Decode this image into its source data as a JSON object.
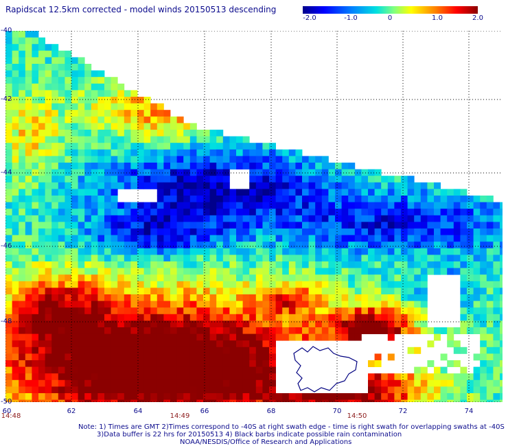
{
  "title": "Rapidscat 12.5km corrected - model winds 20150513 descending",
  "colorbar": {
    "ticks": [
      {
        "label": "-2.0",
        "value": -2.0
      },
      {
        "label": "-1.0",
        "value": -1.0
      },
      {
        "label": "0",
        "value": 0
      },
      {
        "label": "1.0",
        "value": 1.0
      },
      {
        "label": "2.0",
        "value": 2.0
      }
    ],
    "min": -2.0,
    "max": 2.0,
    "colors": [
      "#00008c",
      "#0000ff",
      "#0080ff",
      "#00e0e0",
      "#80ff80",
      "#ffff00",
      "#ff8000",
      "#ff0000",
      "#8b0000"
    ]
  },
  "map": {
    "lat_labels": [
      "-40",
      "-42",
      "-44",
      "-46",
      "-48",
      "-50"
    ],
    "lon_labels": [
      "60",
      "62",
      "64",
      "66",
      "68",
      "70",
      "72",
      "74"
    ],
    "time_labels": [
      "14:48",
      "14:49",
      "14:50"
    ],
    "lat_range": [
      -50,
      -40
    ],
    "lon_range": [
      60,
      74.6
    ],
    "grid": true,
    "coastline": "Kerguelen Islands"
  },
  "notes": {
    "line1": "Note: 1) Times are GMT 2)Times correspond to -40S at right swath edge - time is right swath for overlapping swaths at -40S",
    "line2": "3)Data buffer is 22 hrs for 20150513 4) Black barbs indicate possible rain contamination",
    "line3": "NOAA/NESDIS/Office of Research and Applications"
  }
}
